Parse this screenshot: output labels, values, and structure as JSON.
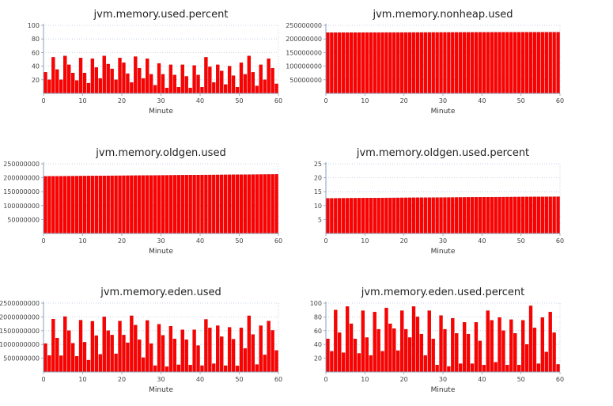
{
  "chart_data": [
    {
      "type": "bar",
      "title": "jvm.memory.used.percent",
      "x_label": "Minute",
      "color": "#ff0000",
      "x": [
        0,
        1,
        2,
        3,
        4,
        5,
        6,
        7,
        8,
        9,
        10,
        11,
        12,
        13,
        14,
        15,
        16,
        17,
        18,
        19,
        20,
        21,
        22,
        23,
        24,
        25,
        26,
        27,
        28,
        29,
        30,
        31,
        32,
        33,
        34,
        35,
        36,
        37,
        38,
        39,
        40,
        41,
        42,
        43,
        44,
        45,
        46,
        47,
        48,
        49,
        50,
        51,
        52,
        53,
        54,
        55,
        56,
        57,
        58,
        59
      ],
      "values": [
        31,
        20,
        53,
        35,
        20,
        55,
        42,
        30,
        19,
        52,
        30,
        15,
        51,
        38,
        22,
        55,
        43,
        36,
        20,
        52,
        45,
        29,
        16,
        54,
        37,
        22,
        51,
        28,
        12,
        44,
        28,
        8,
        42,
        27,
        9,
        42,
        25,
        8,
        41,
        27,
        9,
        53,
        39,
        16,
        42,
        33,
        13,
        40,
        26,
        9,
        45,
        28,
        55,
        31,
        11,
        42,
        20,
        51,
        37,
        14
      ],
      "xlim": [
        0,
        60
      ],
      "xticks": [
        0,
        10,
        20,
        30,
        40,
        50,
        60
      ],
      "ylim": [
        0,
        100
      ],
      "yticks": [
        20,
        40,
        60,
        80,
        100
      ],
      "grid": true
    },
    {
      "type": "bar",
      "title": "jvm.memory.nonheap.used",
      "x_label": "Minute",
      "color": "#ff0000",
      "x": [
        0,
        1,
        2,
        3,
        4,
        5,
        6,
        7,
        8,
        9,
        10,
        11,
        12,
        13,
        14,
        15,
        16,
        17,
        18,
        19,
        20,
        21,
        22,
        23,
        24,
        25,
        26,
        27,
        28,
        29,
        30,
        31,
        32,
        33,
        34,
        35,
        36,
        37,
        38,
        39,
        40,
        41,
        42,
        43,
        44,
        45,
        46,
        47,
        48,
        49,
        50,
        51,
        52,
        53,
        54,
        55,
        56,
        57,
        58,
        59
      ],
      "values": [
        223000000,
        223030000,
        223060000,
        223090000,
        223120000,
        223150000,
        223180000,
        223210000,
        223240000,
        223270000,
        223300000,
        223330000,
        223360000,
        223390000,
        223420000,
        223450000,
        223480000,
        223510000,
        223540000,
        223570000,
        223600000,
        223630000,
        223660000,
        223690000,
        223720000,
        223750000,
        223780000,
        223810000,
        223840000,
        223870000,
        223900000,
        223930000,
        223960000,
        223990000,
        224020000,
        224050000,
        224080000,
        224110000,
        224140000,
        224170000,
        224200000,
        224230000,
        224260000,
        224290000,
        224320000,
        224350000,
        224380000,
        224410000,
        224440000,
        224470000,
        224500000,
        224530000,
        224560000,
        224590000,
        224620000,
        224650000,
        224680000,
        224710000,
        224740000,
        224770000
      ],
      "xlim": [
        0,
        60
      ],
      "xticks": [
        0,
        10,
        20,
        30,
        40,
        50,
        60
      ],
      "ylim": [
        0,
        250000000
      ],
      "yticks": [
        50000000,
        100000000,
        150000000,
        200000000,
        250000000
      ],
      "grid": true
    },
    {
      "type": "bar",
      "title": "jvm.memory.oldgen.used",
      "x_label": "Minute",
      "color": "#ff0000",
      "x": [
        0,
        1,
        2,
        3,
        4,
        5,
        6,
        7,
        8,
        9,
        10,
        11,
        12,
        13,
        14,
        15,
        16,
        17,
        18,
        19,
        20,
        21,
        22,
        23,
        24,
        25,
        26,
        27,
        28,
        29,
        30,
        31,
        32,
        33,
        34,
        35,
        36,
        37,
        38,
        39,
        40,
        41,
        42,
        43,
        44,
        45,
        46,
        47,
        48,
        49,
        50,
        51,
        52,
        53,
        54,
        55,
        56,
        57,
        58,
        59
      ],
      "values": [
        205000000,
        205120000,
        205240000,
        205360000,
        205480000,
        205600000,
        205720000,
        205840000,
        205960000,
        206080000,
        206200000,
        206320000,
        206440000,
        206560000,
        206680000,
        206800000,
        206920000,
        207040000,
        207160000,
        207280000,
        207400000,
        207520000,
        207640000,
        207760000,
        207880000,
        208000000,
        208120000,
        208240000,
        208360000,
        208480000,
        208600000,
        208720000,
        208840000,
        208960000,
        209080000,
        209200000,
        209320000,
        209440000,
        209560000,
        209680000,
        209800000,
        209920000,
        210040000,
        210160000,
        210280000,
        210400000,
        210520000,
        210640000,
        210760000,
        210880000,
        211000000,
        211120000,
        211240000,
        211360000,
        211480000,
        211600000,
        211720000,
        211840000,
        211960000,
        212080000
      ],
      "xlim": [
        0,
        60
      ],
      "xticks": [
        0,
        10,
        20,
        30,
        40,
        50,
        60
      ],
      "ylim": [
        0,
        250000000
      ],
      "yticks": [
        50000000,
        100000000,
        150000000,
        200000000,
        250000000
      ],
      "grid": true
    },
    {
      "type": "bar",
      "title": "jvm.memory.oldgen.used.percent",
      "x_label": "Minute",
      "color": "#ff0000",
      "x": [
        0,
        1,
        2,
        3,
        4,
        5,
        6,
        7,
        8,
        9,
        10,
        11,
        12,
        13,
        14,
        15,
        16,
        17,
        18,
        19,
        20,
        21,
        22,
        23,
        24,
        25,
        26,
        27,
        28,
        29,
        30,
        31,
        32,
        33,
        34,
        35,
        36,
        37,
        38,
        39,
        40,
        41,
        42,
        43,
        44,
        45,
        46,
        47,
        48,
        49,
        50,
        51,
        52,
        53,
        54,
        55,
        56,
        57,
        58,
        59
      ],
      "values": [
        12.6,
        12.61,
        12.62,
        12.63,
        12.64,
        12.65,
        12.66,
        12.67,
        12.68,
        12.69,
        12.7,
        12.71,
        12.72,
        12.73,
        12.74,
        12.75,
        12.76,
        12.77,
        12.78,
        12.79,
        12.8,
        12.81,
        12.82,
        12.83,
        12.84,
        12.85,
        12.86,
        12.87,
        12.88,
        12.89,
        12.9,
        12.91,
        12.92,
        12.93,
        12.94,
        12.95,
        12.96,
        12.97,
        12.98,
        12.99,
        13.0,
        13.01,
        13.02,
        13.03,
        13.04,
        13.05,
        13.06,
        13.07,
        13.08,
        13.09,
        13.1,
        13.11,
        13.12,
        13.13,
        13.14,
        13.15,
        13.16,
        13.17,
        13.18,
        13.19
      ],
      "xlim": [
        0,
        60
      ],
      "xticks": [
        0,
        10,
        20,
        30,
        40,
        50,
        60
      ],
      "ylim": [
        0,
        25
      ],
      "yticks": [
        5,
        10,
        15,
        20,
        25
      ],
      "grid": true
    },
    {
      "type": "bar",
      "title": "jvm.memory.eden.used",
      "x_label": "Minute",
      "color": "#ff0000",
      "x": [
        0,
        1,
        2,
        3,
        4,
        5,
        6,
        7,
        8,
        9,
        10,
        11,
        12,
        13,
        14,
        15,
        16,
        17,
        18,
        19,
        20,
        21,
        22,
        23,
        24,
        25,
        26,
        27,
        28,
        29,
        30,
        31,
        32,
        33,
        34,
        35,
        36,
        37,
        38,
        39,
        40,
        41,
        42,
        43,
        44,
        45,
        46,
        47,
        48,
        49,
        50,
        51,
        52,
        53,
        54,
        55,
        56,
        57,
        58,
        59
      ],
      "values": [
        1030000000,
        600000000,
        1920000000,
        1230000000,
        590000000,
        2010000000,
        1500000000,
        1040000000,
        570000000,
        1880000000,
        1080000000,
        430000000,
        1840000000,
        1320000000,
        640000000,
        2000000000,
        1500000000,
        1340000000,
        660000000,
        1850000000,
        1340000000,
        1060000000,
        2040000000,
        1700000000,
        1170000000,
        520000000,
        1870000000,
        1030000000,
        230000000,
        1730000000,
        1330000000,
        190000000,
        1660000000,
        1200000000,
        260000000,
        1530000000,
        1170000000,
        250000000,
        1530000000,
        960000000,
        230000000,
        1910000000,
        1600000000,
        300000000,
        1680000000,
        1280000000,
        230000000,
        1620000000,
        1190000000,
        220000000,
        1600000000,
        850000000,
        2040000000,
        1360000000,
        270000000,
        1680000000,
        620000000,
        1850000000,
        1510000000,
        780000000
      ],
      "xlim": [
        0,
        60
      ],
      "xticks": [
        0,
        10,
        20,
        30,
        40,
        50,
        60
      ],
      "ylim": [
        0,
        2500000000
      ],
      "yticks": [
        500000000,
        1000000000,
        1500000000,
        2000000000,
        2500000000
      ],
      "grid": true
    },
    {
      "type": "bar",
      "title": "jvm.memory.eden.used.percent",
      "x_label": "Minute",
      "color": "#ff0000",
      "x": [
        0,
        1,
        2,
        3,
        4,
        5,
        6,
        7,
        8,
        9,
        10,
        11,
        12,
        13,
        14,
        15,
        16,
        17,
        18,
        19,
        20,
        21,
        22,
        23,
        24,
        25,
        26,
        27,
        28,
        29,
        30,
        31,
        32,
        33,
        34,
        35,
        36,
        37,
        38,
        39,
        40,
        41,
        42,
        43,
        44,
        45,
        46,
        47,
        48,
        49,
        50,
        51,
        52,
        53,
        54,
        55,
        56,
        57,
        58,
        59
      ],
      "values": [
        48,
        30,
        90,
        57,
        28,
        95,
        70,
        48,
        27,
        89,
        50,
        24,
        87,
        62,
        30,
        93,
        70,
        63,
        31,
        89,
        62,
        50,
        95,
        80,
        55,
        24,
        89,
        48,
        10,
        82,
        62,
        8,
        78,
        56,
        12,
        72,
        55,
        12,
        72,
        45,
        10,
        89,
        75,
        14,
        79,
        60,
        10,
        76,
        56,
        10,
        75,
        40,
        96,
        64,
        12,
        79,
        29,
        87,
        57,
        11
      ],
      "xlim": [
        0,
        60
      ],
      "xticks": [
        0,
        10,
        20,
        30,
        40,
        50,
        60
      ],
      "ylim": [
        0,
        100
      ],
      "yticks": [
        20,
        40,
        60,
        80,
        100
      ],
      "grid": true
    }
  ]
}
